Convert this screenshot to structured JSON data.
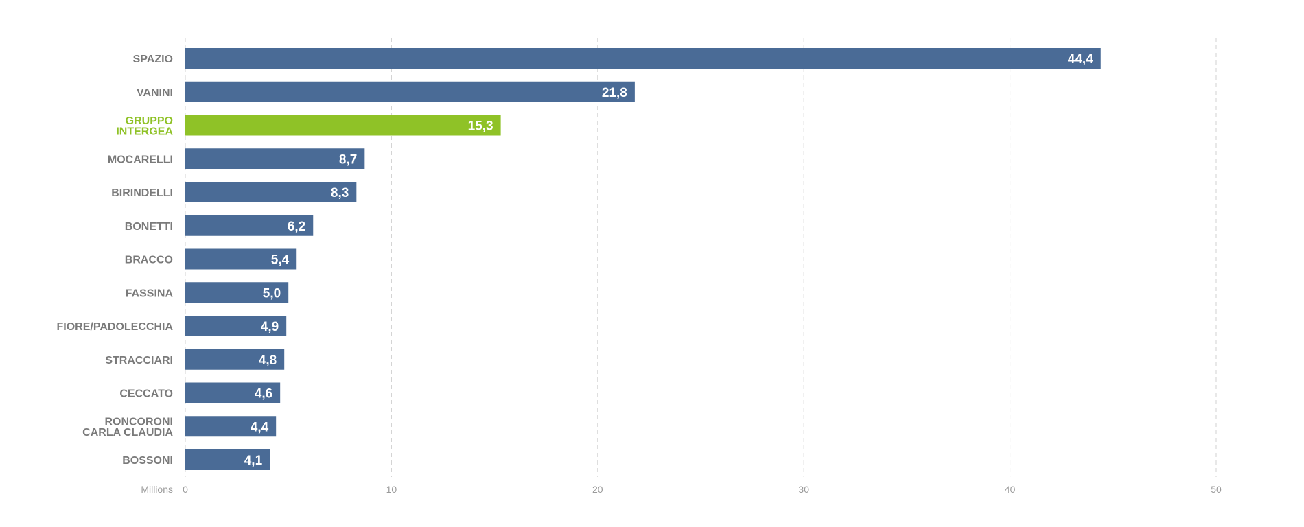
{
  "chart_data": {
    "type": "bar",
    "orientation": "horizontal",
    "unit_label": "Millions",
    "categories": [
      [
        "SPAZIO"
      ],
      [
        "VANINI"
      ],
      [
        "GRUPPO",
        "INTERGEA"
      ],
      [
        "MOCARELLI"
      ],
      [
        "BIRINDELLI"
      ],
      [
        "BONETTI"
      ],
      [
        "BRACCO"
      ],
      [
        "FASSINA"
      ],
      [
        "FIORE/PADOLECCHIA"
      ],
      [
        "STRACCIARI"
      ],
      [
        "CECCATO"
      ],
      [
        "RONCORONI",
        "CARLA CLAUDIA"
      ],
      [
        "BOSSONI"
      ]
    ],
    "values": [
      44.4,
      21.8,
      15.3,
      8.7,
      8.3,
      6.2,
      5.4,
      5.0,
      4.9,
      4.8,
      4.6,
      4.4,
      4.1
    ],
    "value_labels": [
      "44,4",
      "21,8",
      "15,3",
      "8,7",
      "8,3",
      "6,2",
      "5,4",
      "5,0",
      "4,9",
      "4,8",
      "4,6",
      "4,4",
      "4,1"
    ],
    "highlight_index": 2,
    "xlim": [
      0,
      50
    ],
    "x_ticks": [
      0,
      10,
      20,
      30,
      40,
      50
    ],
    "x_tick_labels": [
      "0",
      "10",
      "20",
      "30",
      "40",
      "50"
    ],
    "grid": "vertical-dashed",
    "colors": {
      "bar": "#4a6b96",
      "highlight": "#8fc227",
      "label": "#7a7a7a",
      "highlight_label": "#8fc227",
      "grid": "#d0d0d0",
      "tick": "#9a9a9a"
    }
  }
}
